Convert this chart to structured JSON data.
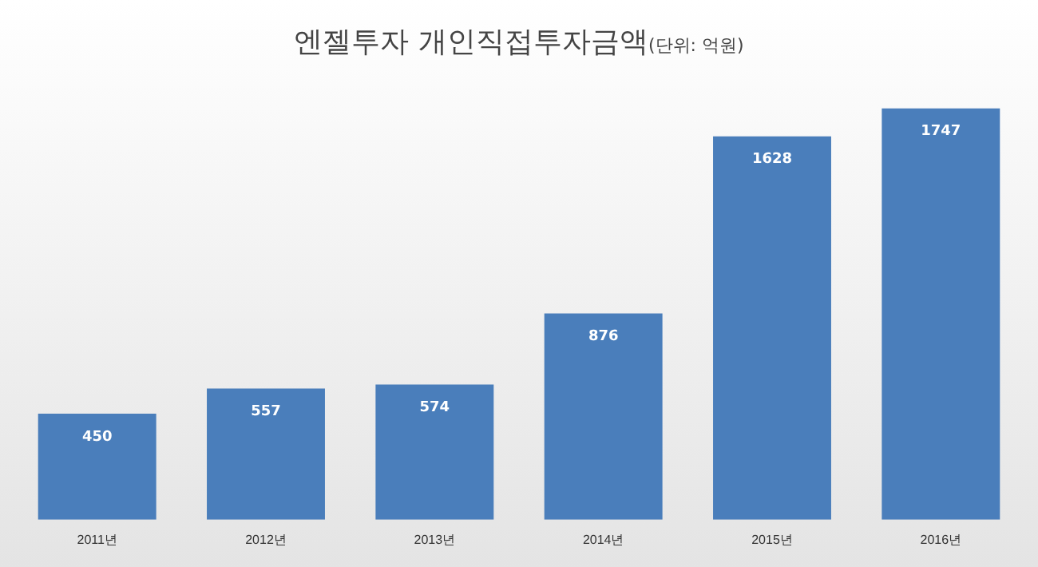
{
  "chart_data": {
    "type": "bar",
    "title": "엔젤투자 개인직접투자금액",
    "subtitle": "(단위: 억원)",
    "categories": [
      "2011년",
      "2012년",
      "2013년",
      "2014년",
      "2015년",
      "2016년"
    ],
    "values": [
      450,
      557,
      574,
      876,
      1628,
      1747
    ],
    "color": "#4a7ebb",
    "data_labels": true,
    "grid": false,
    "legend": false,
    "tick_labels": "x"
  }
}
